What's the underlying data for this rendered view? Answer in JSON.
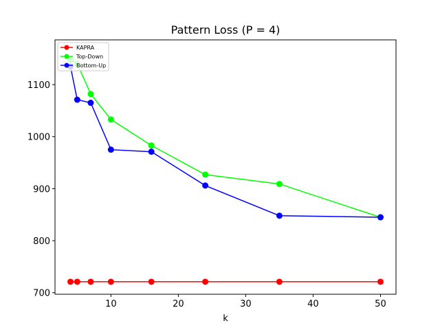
{
  "chart_data": {
    "type": "line",
    "title": "Pattern Loss (P = 4)",
    "xlabel": "k",
    "ylabel": "",
    "xlim": [
      1.7,
      52.3
    ],
    "ylim": [
      697,
      1186
    ],
    "xticks": [
      10,
      20,
      30,
      40,
      50
    ],
    "yticks": [
      700,
      800,
      900,
      1000,
      1100
    ],
    "grid": false,
    "legend_position": "top-left",
    "series": [
      {
        "name": "KAPRA",
        "color": "#ff0000",
        "x": [
          4,
          5,
          7,
          10,
          16,
          24,
          35,
          50
        ],
        "y": [
          721,
          721,
          721,
          721,
          721,
          721,
          721,
          721
        ]
      },
      {
        "name": "Top-Down",
        "color": "#00ff00",
        "x": [
          4,
          5,
          7,
          10,
          16,
          24,
          35,
          50
        ],
        "y": [
          1148,
          1140,
          1082,
          1033,
          983,
          927,
          909,
          845
        ]
      },
      {
        "name": "Bottom-Up",
        "color": "#0000ff",
        "x": [
          4,
          5,
          7,
          10,
          16,
          24,
          35,
          50
        ],
        "y": [
          1135,
          1071,
          1065,
          975,
          971,
          906,
          848,
          845
        ]
      }
    ]
  }
}
